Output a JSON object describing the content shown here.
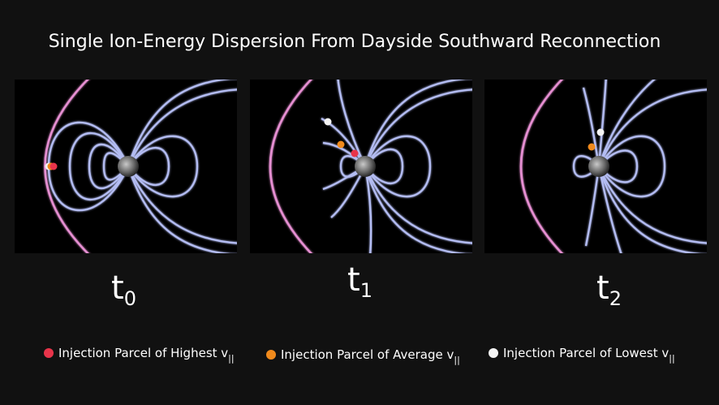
{
  "title": "Single Ion-Energy Dispersion From Dayside Southward Reconnection",
  "panels": [
    {
      "label": "t",
      "subscript": "0"
    },
    {
      "label": "t",
      "subscript": "1"
    },
    {
      "label": "t",
      "subscript": "2"
    }
  ],
  "legend": [
    {
      "text": "Injection Parcel of Highest v",
      "subscript": "||",
      "color": "#e8344a"
    },
    {
      "text": "Injection Parcel of Average v",
      "subscript": "||",
      "color": "#f08a1c"
    },
    {
      "text": "Injection Parcel of Lowest v",
      "subscript": "||",
      "color": "#f4f4f4"
    }
  ]
}
